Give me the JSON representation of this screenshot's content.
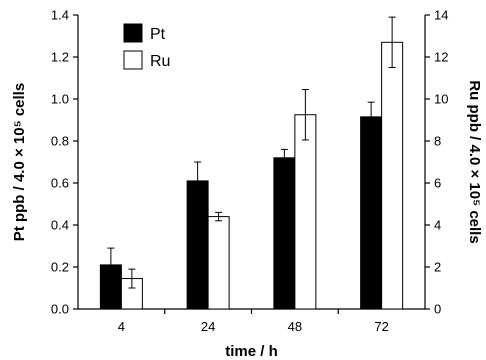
{
  "chart_data": {
    "type": "bar",
    "categories": [
      "4",
      "24",
      "48",
      "72"
    ],
    "xlabel": "time / h",
    "ylabel_left": "Pt ppb / 4.0 × 10⁵ cells",
    "ylabel_right": "Ru ppb / 4.0 × 10⁵ cells",
    "ylim_left": [
      0,
      1.4
    ],
    "ylim_right": [
      0,
      14
    ],
    "yticks_left": [
      "0.0",
      "0.2",
      "0.4",
      "0.6",
      "0.8",
      "1.0",
      "1.2",
      "1.4"
    ],
    "yticks_right": [
      "0",
      "2",
      "4",
      "6",
      "8",
      "10",
      "12",
      "14"
    ],
    "grid": false,
    "legend_position": "top-left",
    "series": [
      {
        "name": "Pt",
        "axis": "left",
        "color": "#000000",
        "values": [
          0.21,
          0.61,
          0.72,
          0.915
        ],
        "errors": [
          0.08,
          0.09,
          0.04,
          0.07
        ]
      },
      {
        "name": "Ru",
        "axis": "right",
        "color": "#ffffff",
        "values": [
          1.45,
          4.4,
          9.25,
          12.7
        ],
        "errors": [
          0.45,
          0.2,
          1.2,
          1.2
        ]
      }
    ]
  }
}
